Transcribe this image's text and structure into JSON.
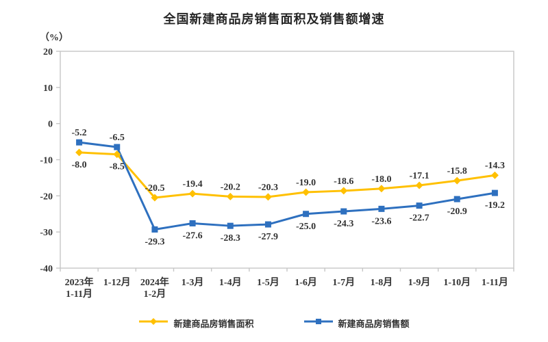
{
  "title": "全国新建商品房销售面积及销售额增速",
  "unit_label": "（%）",
  "colors": {
    "axis": "#c6c6c6",
    "text": "#333333",
    "title": "#262626",
    "series_area": "#FFC000",
    "series_amount": "#2E70BF"
  },
  "chart_data": {
    "type": "line",
    "title": "全国新建商品房销售面积及销售额增速",
    "ylabel": "（%）",
    "xlabel": "",
    "ylim": [
      -40,
      20
    ],
    "yticks": [
      20,
      10,
      0,
      -10,
      -20,
      -30,
      -40
    ],
    "grid": false,
    "legend_position": "bottom",
    "categories": [
      [
        "2023年",
        "1-11月"
      ],
      [
        "1-12月"
      ],
      [
        "2024年",
        "1-2月"
      ],
      [
        "1-3月"
      ],
      [
        "1-4月"
      ],
      [
        "1-5月"
      ],
      [
        "1-6月"
      ],
      [
        "1-7月"
      ],
      [
        "1-8月"
      ],
      [
        "1-9月"
      ],
      [
        "1-10月"
      ],
      [
        "1-11月"
      ]
    ],
    "series": [
      {
        "name": "新建商品房销售面积",
        "marker": "diamond",
        "color": "#FFC000",
        "values": [
          -8.0,
          -8.5,
          -20.5,
          -19.4,
          -20.2,
          -20.3,
          -19.0,
          -18.6,
          -18.0,
          -17.1,
          -15.8,
          -14.3
        ]
      },
      {
        "name": "新建商品房销售额",
        "marker": "square",
        "color": "#2E70BF",
        "values": [
          -5.2,
          -6.5,
          -29.3,
          -27.6,
          -28.3,
          -27.9,
          -25.0,
          -24.3,
          -23.6,
          -22.7,
          -20.9,
          -19.2
        ]
      }
    ]
  }
}
